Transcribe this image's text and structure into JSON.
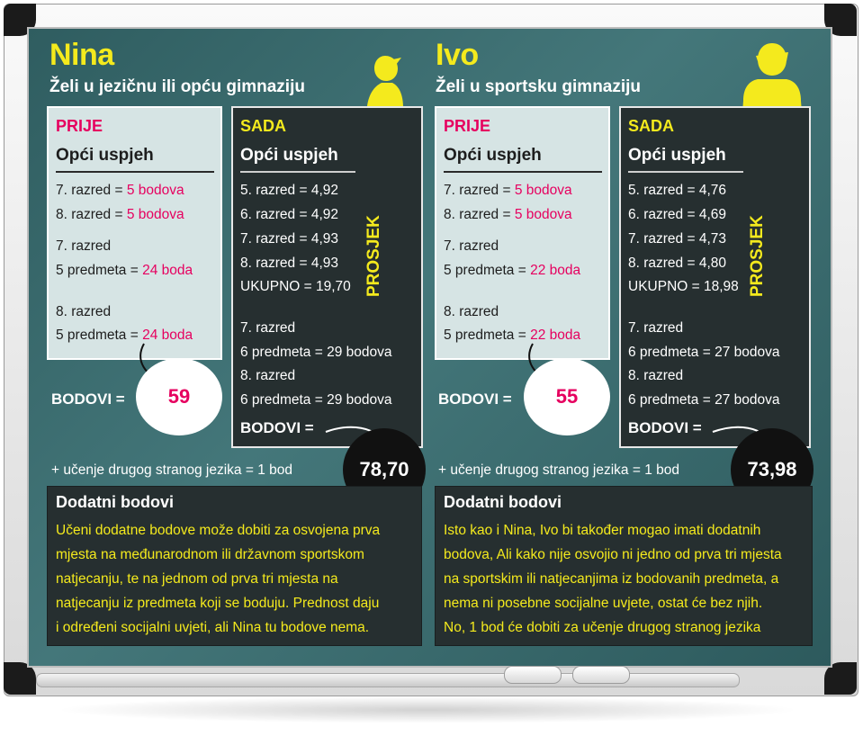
{
  "left": {
    "name": "Nina",
    "subtitle": "Želi u jezičnu ili opću gimnaziju",
    "prije": {
      "header": "PRIJE",
      "section": "Opći uspjeh",
      "lines": [
        {
          "label": "7. razred = ",
          "value": "5 bodova"
        },
        {
          "label": "8. razred = ",
          "value": "5 bodova"
        },
        {
          "label": "7. razred",
          "value": ""
        },
        {
          "label": "5 predmeta = ",
          "value": "24 boda"
        },
        {
          "label": "8. razred",
          "value": ""
        },
        {
          "label": "5 predmeta = ",
          "value": "24 boda"
        }
      ]
    },
    "sada": {
      "header": "SADA",
      "section": "Opći uspjeh",
      "avg_lines": [
        "5. razred = 4,92",
        "6. razred = 4,92",
        "7. razred = 4,93",
        "8. razred = 4,93",
        "UKUPNO = 19,70"
      ],
      "prosjek": "PROSJEK",
      "subject_lines": [
        "7. razred",
        "6 predmeta = 29 bodova",
        "8. razred",
        "6 predmeta = 29 bodova"
      ],
      "bodovi_label": "BODOVI =",
      "total": "78,70"
    },
    "bodovi_label": "BODOVI =",
    "prije_total": "59",
    "extra": "+ učenje drugog stranog jezika = 1 bod",
    "dodatni": {
      "title": "Dodatni bodovi",
      "lines": [
        "Učeni dodatne bodove može dobiti za osvojena prva",
        "mjesta na međunarodnom ili državnom sportskom",
        "natjecanju, te na jednom od prva tri mjesta na",
        "natjecanju iz predmeta koji se boduju.  Prednost daju",
        "i određeni socijalni uvjeti, ali Nina tu bodove nema."
      ]
    }
  },
  "right": {
    "name": "Ivo",
    "subtitle": "Želi u sportsku gimnaziju",
    "prije": {
      "header": "PRIJE",
      "section": "Opći uspjeh",
      "lines": [
        {
          "label": "7. razred = ",
          "value": "5 bodova"
        },
        {
          "label": "8. razred = ",
          "value": "5 bodova"
        },
        {
          "label": "7. razred",
          "value": ""
        },
        {
          "label": "5 predmeta = ",
          "value": "22 boda"
        },
        {
          "label": "8. razred",
          "value": ""
        },
        {
          "label": "5 predmeta = ",
          "value": "22 boda"
        }
      ]
    },
    "sada": {
      "header": "SADA",
      "section": "Opći uspjeh",
      "avg_lines": [
        "5. razred = 4,76",
        "6. razred = 4,69",
        "7. razred = 4,73",
        "8. razred = 4,80",
        "UKUPNO = 18,98"
      ],
      "prosjek": "PROSJEK",
      "subject_lines": [
        "7. razred",
        "6 predmeta = 27 bodova",
        "8. razred",
        "6 predmeta = 27 bodova"
      ],
      "bodovi_label": "BODOVI =",
      "total": "73,98"
    },
    "bodovi_label": "BODOVI =",
    "prije_total": "55",
    "extra": "+ učenje drugog stranog jezika = 1 bod",
    "dodatni": {
      "title": "Dodatni bodovi",
      "lines": [
        "Isto kao i Nina, Ivo bi također mogao imati dodatnih",
        "bodova, Ali kako nije osvojio ni jedno od prva tri mjesta",
        "na sportskim ili natjecanjima iz bodovanih predmeta, a",
        "nema ni posebne socijalne uvjete, ostat će bez njih.",
        "No, 1 bod će dobiti za učenje drugog stranog jezika"
      ]
    }
  },
  "colors": {
    "accent_yellow": "#f4ea1d",
    "accent_pink": "#e6005f",
    "board": "#3c6c6f",
    "dark_box": "#262f30",
    "light_box": "#d6e4e4"
  }
}
